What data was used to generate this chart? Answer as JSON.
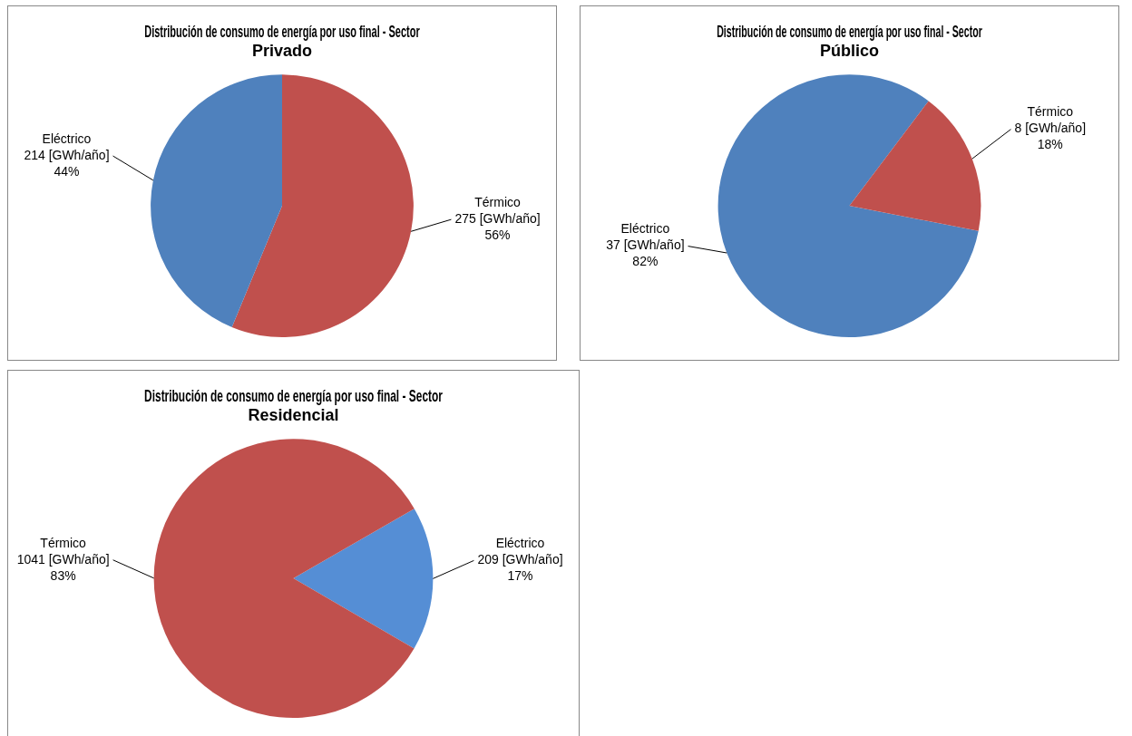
{
  "chart_data": [
    {
      "type": "pie",
      "title": "Distribución de consumo de energía por uso final - Sector Privado",
      "categories": [
        "Térmico",
        "Eléctrico"
      ],
      "values": [
        275,
        214
      ],
      "colors": [
        "#c0504d",
        "#4f81bd"
      ],
      "value_labels": [
        "275 [GWh/año]\n56%",
        "214 [GWh/año]\n44%"
      ]
    },
    {
      "type": "pie",
      "title": "Distribución de consumo de energía por uso final - Sector Público",
      "categories": [
        "Eléctrico",
        "Térmico"
      ],
      "values": [
        37,
        8
      ],
      "colors": [
        "#4f81bd",
        "#c0504d"
      ],
      "value_labels": [
        "37 [GWh/año]\n82%",
        "8 [GWh/año]\n18%"
      ]
    },
    {
      "type": "pie",
      "title": "Distribución de consumo de energía por uso final - Sector Residencial",
      "categories": [
        "Eléctrico",
        "Térmico"
      ],
      "values": [
        209,
        1041
      ],
      "colors": [
        "#558ed5",
        "#c0504d"
      ],
      "value_labels": [
        "209 [GWh/año]\n17%",
        "1041 [GWh/año]\n83%"
      ]
    }
  ]
}
